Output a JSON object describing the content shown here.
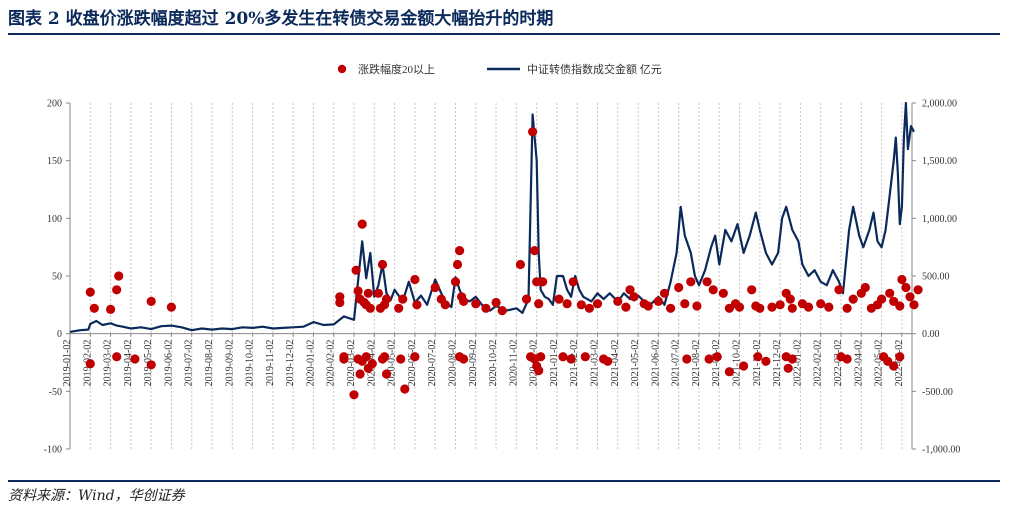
{
  "header": {
    "title": "图表 2   收盘价涨跌幅度超过 20%多发生在转债交易金额大幅抬升的时期"
  },
  "footer": {
    "source": "资料来源：Wind，华创证券"
  },
  "chart_data": {
    "type": "line+scatter",
    "x_tick_labels": [
      "2019-01-02",
      "2019-02-02",
      "2019-03-02",
      "2019-04-02",
      "2019-05-02",
      "2019-06-02",
      "2019-07-02",
      "2019-08-02",
      "2019-09-02",
      "2019-10-02",
      "2019-11-02",
      "2019-12-02",
      "2020-01-02",
      "2020-02-02",
      "2020-03-02",
      "2020-04-02",
      "2020-05-02",
      "2020-06-02",
      "2020-07-02",
      "2020-08-02",
      "2020-09-02",
      "2020-10-02",
      "2020-11-02",
      "2020-12-02",
      "2021-01-02",
      "2021-02-02",
      "2021-03-02",
      "2021-04-02",
      "2021-05-02",
      "2021-06-02",
      "2021-07-02",
      "2021-08-02",
      "2021-09-02",
      "2021-10-02",
      "2021-11-02",
      "2021-12-02",
      "2022-01-02",
      "2022-02-02",
      "2022-03-02",
      "2022-04-02",
      "2022-05-02",
      "2022-06-02"
    ],
    "left_axis": {
      "ylim": [
        -100,
        200
      ],
      "ticks": [
        "-100",
        "-50",
        "0",
        "50",
        "100",
        "150",
        "200"
      ]
    },
    "right_axis": {
      "ylim": [
        -1000,
        2000
      ],
      "ticks": [
        "-1,000.00",
        "-500.00",
        "0.00",
        "500.00",
        "1,000.00",
        "1,500.00",
        "2,000.00"
      ]
    },
    "grid": "vertical dashed",
    "legend_position": "top-center",
    "series": [
      {
        "name": "涨跌幅度20以上",
        "kind": "scatter",
        "axis": "left",
        "color": "#c00000",
        "points": [
          [
            1.0,
            36
          ],
          [
            1.2,
            22
          ],
          [
            1.0,
            -26
          ],
          [
            2.0,
            21
          ],
          [
            2.3,
            38
          ],
          [
            2.4,
            50
          ],
          [
            2.3,
            -20
          ],
          [
            3.2,
            -22
          ],
          [
            4.0,
            28
          ],
          [
            4.0,
            -27
          ],
          [
            5.0,
            23
          ],
          [
            13.3,
            32
          ],
          [
            13.3,
            27
          ],
          [
            13.5,
            -20
          ],
          [
            13.5,
            -22
          ],
          [
            14.1,
            55
          ],
          [
            14.2,
            37
          ],
          [
            14.4,
            95
          ],
          [
            14.5,
            27
          ],
          [
            14.6,
            25
          ],
          [
            14.3,
            30
          ],
          [
            14.7,
            35
          ],
          [
            14.8,
            22
          ],
          [
            14.2,
            -22
          ],
          [
            14.4,
            -24
          ],
          [
            14.6,
            -20
          ],
          [
            14.3,
            -35
          ],
          [
            14.7,
            -30
          ],
          [
            14.0,
            -53
          ],
          [
            14.9,
            -26
          ],
          [
            15.2,
            35
          ],
          [
            15.4,
            60
          ],
          [
            15.5,
            25
          ],
          [
            15.6,
            30
          ],
          [
            15.3,
            22
          ],
          [
            15.4,
            -22
          ],
          [
            15.5,
            -20
          ],
          [
            15.6,
            -35
          ],
          [
            16.2,
            22
          ],
          [
            16.4,
            30
          ],
          [
            16.3,
            -22
          ],
          [
            16.5,
            -48
          ],
          [
            17.0,
            47
          ],
          [
            17.1,
            25
          ],
          [
            17.0,
            -20
          ],
          [
            18.0,
            40
          ],
          [
            18.3,
            30
          ],
          [
            18.5,
            25
          ],
          [
            19.0,
            45
          ],
          [
            19.2,
            72
          ],
          [
            19.1,
            60
          ],
          [
            19.3,
            32
          ],
          [
            19.4,
            28
          ],
          [
            19.2,
            -20
          ],
          [
            19.4,
            -22
          ],
          [
            20.0,
            26
          ],
          [
            20.5,
            22
          ],
          [
            21.0,
            27
          ],
          [
            21.3,
            20
          ],
          [
            22.2,
            60
          ],
          [
            22.5,
            30
          ],
          [
            22.8,
            175
          ],
          [
            22.9,
            72
          ],
          [
            23.0,
            45
          ],
          [
            23.1,
            26
          ],
          [
            23.3,
            45
          ],
          [
            22.7,
            -20
          ],
          [
            22.9,
            -22
          ],
          [
            23.0,
            -28
          ],
          [
            23.1,
            -32
          ],
          [
            23.2,
            -20
          ],
          [
            24.1,
            30
          ],
          [
            24.5,
            26
          ],
          [
            24.8,
            45
          ],
          [
            24.3,
            -20
          ],
          [
            24.7,
            -22
          ],
          [
            25.2,
            25
          ],
          [
            25.6,
            22
          ],
          [
            25.4,
            -20
          ],
          [
            26.0,
            26
          ],
          [
            26.3,
            -22
          ],
          [
            26.5,
            -24
          ],
          [
            27.0,
            28
          ],
          [
            27.4,
            23
          ],
          [
            27.6,
            38
          ],
          [
            27.8,
            32
          ],
          [
            28.3,
            26
          ],
          [
            28.5,
            24
          ],
          [
            29.0,
            28
          ],
          [
            29.3,
            35
          ],
          [
            29.6,
            22
          ],
          [
            30.0,
            40
          ],
          [
            30.3,
            26
          ],
          [
            30.6,
            45
          ],
          [
            30.4,
            -22
          ],
          [
            30.9,
            24
          ],
          [
            31.4,
            45
          ],
          [
            31.7,
            38
          ],
          [
            31.5,
            -22
          ],
          [
            31.9,
            -20
          ],
          [
            32.2,
            35
          ],
          [
            32.5,
            22
          ],
          [
            32.8,
            26
          ],
          [
            33.0,
            23
          ],
          [
            32.5,
            -33
          ],
          [
            33.2,
            -28
          ],
          [
            33.6,
            38
          ],
          [
            33.8,
            24
          ],
          [
            34.0,
            22
          ],
          [
            33.9,
            -20
          ],
          [
            34.3,
            -24
          ],
          [
            34.6,
            23
          ],
          [
            35.0,
            25
          ],
          [
            35.3,
            35
          ],
          [
            35.5,
            30
          ],
          [
            35.6,
            22
          ],
          [
            35.3,
            -20
          ],
          [
            35.6,
            -22
          ],
          [
            35.4,
            -30
          ],
          [
            36.1,
            26
          ],
          [
            36.4,
            23
          ],
          [
            37.0,
            26
          ],
          [
            37.4,
            23
          ],
          [
            37.9,
            38
          ],
          [
            38.3,
            22
          ],
          [
            38.6,
            30
          ],
          [
            38.0,
            -20
          ],
          [
            38.3,
            -22
          ],
          [
            39.0,
            35
          ],
          [
            39.2,
            40
          ],
          [
            39.5,
            22
          ],
          [
            39.8,
            25
          ],
          [
            40.0,
            30
          ],
          [
            40.4,
            35
          ],
          [
            40.6,
            28
          ],
          [
            40.9,
            24
          ],
          [
            40.1,
            -20
          ],
          [
            40.3,
            -24
          ],
          [
            40.6,
            -28
          ],
          [
            41.0,
            47
          ],
          [
            41.2,
            40
          ],
          [
            41.4,
            32
          ],
          [
            41.6,
            25
          ],
          [
            41.8,
            38
          ],
          [
            40.9,
            -20
          ]
        ]
      },
      {
        "name": "中证转债指数成交金额 亿元",
        "kind": "line",
        "axis": "right",
        "color": "#0b2a5b",
        "points": [
          [
            0,
            15
          ],
          [
            0.5,
            30
          ],
          [
            0.9,
            35
          ],
          [
            1.0,
            85
          ],
          [
            1.3,
            110
          ],
          [
            1.6,
            75
          ],
          [
            2.0,
            90
          ],
          [
            2.3,
            70
          ],
          [
            2.6,
            60
          ],
          [
            3.0,
            45
          ],
          [
            3.5,
            55
          ],
          [
            4.0,
            40
          ],
          [
            4.5,
            65
          ],
          [
            5.0,
            70
          ],
          [
            5.5,
            55
          ],
          [
            6.0,
            30
          ],
          [
            6.5,
            45
          ],
          [
            7.0,
            35
          ],
          [
            7.5,
            45
          ],
          [
            8.0,
            40
          ],
          [
            8.5,
            55
          ],
          [
            9.0,
            50
          ],
          [
            9.5,
            60
          ],
          [
            10.0,
            45
          ],
          [
            10.5,
            50
          ],
          [
            11.0,
            55
          ],
          [
            11.5,
            60
          ],
          [
            12.0,
            100
          ],
          [
            12.5,
            75
          ],
          [
            13.0,
            80
          ],
          [
            13.5,
            150
          ],
          [
            14.0,
            120
          ],
          [
            14.4,
            800
          ],
          [
            14.6,
            480
          ],
          [
            14.8,
            700
          ],
          [
            15.0,
            320
          ],
          [
            15.2,
            420
          ],
          [
            15.4,
            600
          ],
          [
            15.6,
            350
          ],
          [
            15.8,
            290
          ],
          [
            16.0,
            380
          ],
          [
            16.4,
            280
          ],
          [
            16.7,
            450
          ],
          [
            17.0,
            270
          ],
          [
            17.3,
            330
          ],
          [
            17.6,
            250
          ],
          [
            18.0,
            470
          ],
          [
            18.3,
            350
          ],
          [
            18.5,
            280
          ],
          [
            18.8,
            230
          ],
          [
            19.0,
            490
          ],
          [
            19.2,
            380
          ],
          [
            19.4,
            300
          ],
          [
            19.7,
            280
          ],
          [
            20.0,
            320
          ],
          [
            20.3,
            250
          ],
          [
            20.7,
            200
          ],
          [
            21.0,
            240
          ],
          [
            21.5,
            200
          ],
          [
            22.0,
            220
          ],
          [
            22.3,
            180
          ],
          [
            22.6,
            300
          ],
          [
            22.8,
            1900
          ],
          [
            23.0,
            1500
          ],
          [
            23.1,
            700
          ],
          [
            23.2,
            380
          ],
          [
            23.4,
            320
          ],
          [
            23.6,
            300
          ],
          [
            23.8,
            250
          ],
          [
            24.0,
            500
          ],
          [
            24.3,
            500
          ],
          [
            24.5,
            380
          ],
          [
            24.7,
            320
          ],
          [
            24.9,
            500
          ],
          [
            25.1,
            380
          ],
          [
            25.3,
            320
          ],
          [
            25.5,
            300
          ],
          [
            25.7,
            280
          ],
          [
            26.0,
            350
          ],
          [
            26.3,
            300
          ],
          [
            26.6,
            350
          ],
          [
            27.0,
            280
          ],
          [
            27.3,
            350
          ],
          [
            27.6,
            300
          ],
          [
            28.0,
            330
          ],
          [
            28.3,
            280
          ],
          [
            28.6,
            250
          ],
          [
            29.0,
            320
          ],
          [
            29.3,
            250
          ],
          [
            29.6,
            450
          ],
          [
            29.9,
            700
          ],
          [
            30.1,
            1100
          ],
          [
            30.3,
            850
          ],
          [
            30.6,
            700
          ],
          [
            30.8,
            500
          ],
          [
            31.0,
            420
          ],
          [
            31.3,
            550
          ],
          [
            31.6,
            750
          ],
          [
            31.8,
            850
          ],
          [
            32.0,
            600
          ],
          [
            32.3,
            900
          ],
          [
            32.6,
            800
          ],
          [
            32.9,
            950
          ],
          [
            33.2,
            700
          ],
          [
            33.5,
            850
          ],
          [
            33.8,
            1050
          ],
          [
            34.0,
            900
          ],
          [
            34.3,
            700
          ],
          [
            34.6,
            600
          ],
          [
            34.9,
            700
          ],
          [
            35.1,
            1000
          ],
          [
            35.3,
            1100
          ],
          [
            35.6,
            900
          ],
          [
            35.9,
            800
          ],
          [
            36.1,
            600
          ],
          [
            36.4,
            500
          ],
          [
            36.7,
            550
          ],
          [
            37.0,
            450
          ],
          [
            37.3,
            420
          ],
          [
            37.6,
            550
          ],
          [
            37.9,
            450
          ],
          [
            38.1,
            350
          ],
          [
            38.4,
            900
          ],
          [
            38.6,
            1100
          ],
          [
            38.9,
            850
          ],
          [
            39.1,
            750
          ],
          [
            39.4,
            900
          ],
          [
            39.6,
            1050
          ],
          [
            39.8,
            800
          ],
          [
            40.0,
            750
          ],
          [
            40.2,
            900
          ],
          [
            40.4,
            1200
          ],
          [
            40.6,
            1500
          ],
          [
            40.7,
            1700
          ],
          [
            40.8,
            1400
          ],
          [
            40.9,
            950
          ],
          [
            41.0,
            1100
          ],
          [
            41.1,
            1700
          ],
          [
            41.2,
            2000
          ],
          [
            41.3,
            1600
          ],
          [
            41.45,
            1800
          ],
          [
            41.6,
            1750
          ]
        ]
      }
    ]
  }
}
